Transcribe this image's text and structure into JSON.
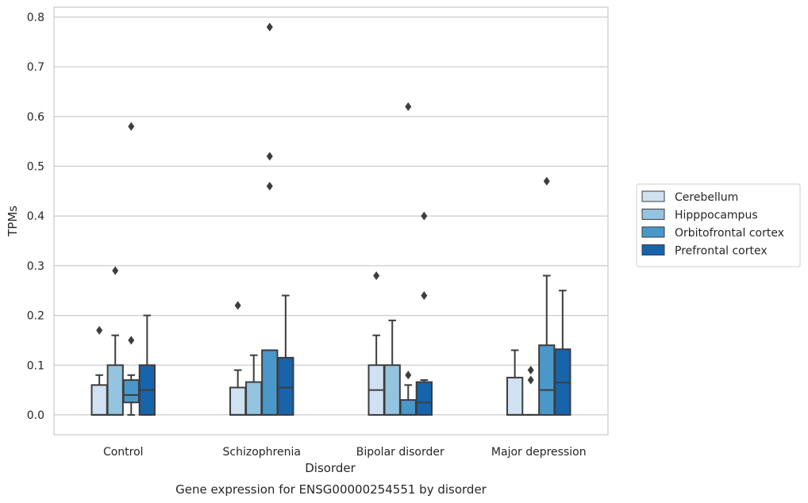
{
  "chart_data": {
    "type": "box",
    "title": "",
    "caption": "Gene expression for ENSG00000254551 by disorder",
    "xlabel": "Disorder",
    "ylabel": "TPMs",
    "ylim": [
      -0.04,
      0.82
    ],
    "yticks": [
      0.0,
      0.1,
      0.2,
      0.3,
      0.4,
      0.5,
      0.6,
      0.7,
      0.8
    ],
    "ytick_labels": [
      "0.0",
      "0.1",
      "0.2",
      "0.3",
      "0.4",
      "0.5",
      "0.6",
      "0.7",
      "0.8"
    ],
    "grid": "horizontal",
    "legend_position": "right",
    "categories": [
      "Control",
      "Schizophrenia",
      "Bipolar disorder",
      "Major depression"
    ],
    "series": [
      {
        "name": "Cerebellum",
        "color": "#d0e1f2",
        "boxes": [
          {
            "whislo": 0.0,
            "q1": 0.0,
            "med": 0.0,
            "q3": 0.06,
            "whishi": 0.08,
            "fliers": [
              0.17
            ]
          },
          {
            "whislo": 0.0,
            "q1": 0.0,
            "med": 0.0,
            "q3": 0.055,
            "whishi": 0.09,
            "fliers": [
              0.22
            ]
          },
          {
            "whislo": 0.0,
            "q1": 0.0,
            "med": 0.05,
            "q3": 0.1,
            "whishi": 0.16,
            "fliers": [
              0.28
            ]
          },
          {
            "whislo": 0.0,
            "q1": 0.0,
            "med": 0.0,
            "q3": 0.075,
            "whishi": 0.13,
            "fliers": []
          }
        ]
      },
      {
        "name": "Hipppocampus",
        "color": "#94c4df",
        "boxes": [
          {
            "whislo": 0.0,
            "q1": 0.0,
            "med": 0.0,
            "q3": 0.1,
            "whishi": 0.16,
            "fliers": [
              0.29
            ]
          },
          {
            "whislo": 0.0,
            "q1": 0.0,
            "med": 0.0,
            "q3": 0.066,
            "whishi": 0.12,
            "fliers": []
          },
          {
            "whislo": 0.0,
            "q1": 0.0,
            "med": 0.0,
            "q3": 0.1,
            "whishi": 0.19,
            "fliers": []
          },
          {
            "whislo": 0.0,
            "q1": 0.0,
            "med": 0.0,
            "q3": 0.0,
            "whishi": 0.0,
            "fliers": [
              0.07,
              0.09
            ]
          }
        ]
      },
      {
        "name": "Orbitofrontal cortex",
        "color": "#4a98c9",
        "boxes": [
          {
            "whislo": 0.0,
            "q1": 0.025,
            "med": 0.04,
            "q3": 0.07,
            "whishi": 0.08,
            "fliers": [
              0.15,
              0.58
            ]
          },
          {
            "whislo": 0.0,
            "q1": 0.0,
            "med": 0.0,
            "q3": 0.13,
            "whishi": 0.13,
            "fliers": [
              0.46,
              0.52,
              0.78
            ]
          },
          {
            "whislo": 0.0,
            "q1": 0.0,
            "med": 0.0,
            "q3": 0.03,
            "whishi": 0.06,
            "fliers": [
              0.08,
              0.62
            ]
          },
          {
            "whislo": 0.0,
            "q1": 0.0,
            "med": 0.05,
            "q3": 0.14,
            "whishi": 0.28,
            "fliers": [
              0.47
            ]
          }
        ]
      },
      {
        "name": "Prefrontal cortex",
        "color": "#1764ab",
        "boxes": [
          {
            "whislo": 0.0,
            "q1": 0.0,
            "med": 0.05,
            "q3": 0.1,
            "whishi": 0.2,
            "fliers": []
          },
          {
            "whislo": 0.0,
            "q1": 0.0,
            "med": 0.055,
            "q3": 0.115,
            "whishi": 0.24,
            "fliers": []
          },
          {
            "whislo": 0.0,
            "q1": 0.0,
            "med": 0.025,
            "q3": 0.066,
            "whishi": 0.07,
            "fliers": [
              0.24,
              0.4
            ]
          },
          {
            "whislo": 0.0,
            "q1": 0.0,
            "med": 0.065,
            "q3": 0.132,
            "whishi": 0.25,
            "fliers": []
          }
        ]
      }
    ]
  }
}
